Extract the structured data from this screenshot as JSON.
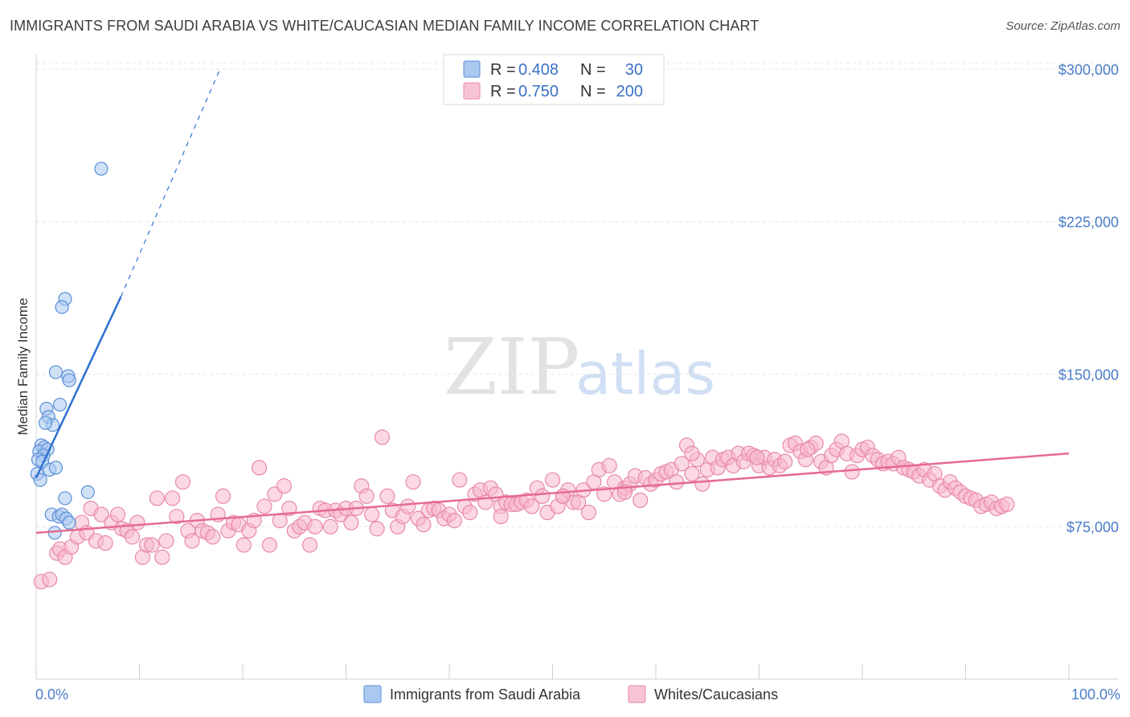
{
  "title": "IMMIGRANTS FROM SAUDI ARABIA VS WHITE/CAUCASIAN MEDIAN FAMILY INCOME CORRELATION CHART",
  "source": "Source: ZipAtlas.com",
  "watermark": {
    "zip": "ZIP",
    "atlas": "atlas"
  },
  "colors": {
    "blue_fill": "#aac8f0",
    "blue_stroke": "#5a8fd8",
    "blue_line": "#2e70d0",
    "pink_fill": "#f7b8cc",
    "pink_stroke": "#e889a8",
    "pink_line": "#e56b93",
    "tick_color": "#4a7cc9",
    "grid": "#e6e6e6"
  },
  "legend": {
    "rows": [
      {
        "r_label": "R =",
        "r_value": "0.408",
        "n_label": "N =",
        "n_value": "30"
      },
      {
        "r_label": "R =",
        "r_value": "0.750",
        "n_label": "N =",
        "n_value": "200"
      }
    ]
  },
  "bottom_legend": [
    "Immigrants from Saudi Arabia",
    "Whites/Caucasians"
  ],
  "chart_data": {
    "type": "scatter",
    "title": "IMMIGRANTS FROM SAUDI ARABIA VS WHITE/CAUCASIAN MEDIAN FAMILY INCOME CORRELATION CHART",
    "xlabel": "",
    "ylabel": "Median Family Income",
    "xlim": [
      0,
      100
    ],
    "ylim": [
      0,
      315000
    ],
    "x_tick_labels": [
      "0.0%",
      "100.0%"
    ],
    "y_ticks": [
      75000,
      150000,
      225000,
      300000
    ],
    "y_tick_labels": [
      "$75,000",
      "$150,000",
      "$225,000",
      "$300,000"
    ],
    "series": [
      {
        "name": "Immigrants from Saudi Arabia",
        "r": 0.408,
        "n": 30,
        "trend": {
          "x": [
            0,
            8.2
          ],
          "y": [
            99000,
            188000
          ],
          "dashed_to": {
            "x": 17.8,
            "y": 300000
          }
        },
        "points": [
          [
            6.3,
            251000
          ],
          [
            2.8,
            187000
          ],
          [
            2.5,
            183000
          ],
          [
            1.9,
            151000
          ],
          [
            3.1,
            149000
          ],
          [
            3.2,
            147000
          ],
          [
            1.0,
            133000
          ],
          [
            2.3,
            135000
          ],
          [
            1.2,
            129000
          ],
          [
            1.6,
            125000
          ],
          [
            0.9,
            126000
          ],
          [
            0.5,
            115000
          ],
          [
            0.8,
            114000
          ],
          [
            0.3,
            112000
          ],
          [
            1.1,
            113000
          ],
          [
            0.7,
            110000
          ],
          [
            0.2,
            108000
          ],
          [
            0.6,
            107000
          ],
          [
            0.1,
            101000
          ],
          [
            1.3,
            103000
          ],
          [
            1.9,
            104000
          ],
          [
            2.8,
            89000
          ],
          [
            5.0,
            92000
          ],
          [
            1.5,
            81000
          ],
          [
            2.2,
            80000
          ],
          [
            2.5,
            81000
          ],
          [
            2.9,
            79000
          ],
          [
            3.2,
            77000
          ],
          [
            1.8,
            72000
          ],
          [
            0.4,
            98000
          ]
        ]
      },
      {
        "name": "Whites/Caucasians",
        "r": 0.75,
        "n": 200,
        "trend": {
          "x": [
            0,
            100
          ],
          "y": [
            72000,
            111000
          ]
        },
        "points": [
          [
            0.5,
            48000
          ],
          [
            1.3,
            49000
          ],
          [
            2.0,
            62000
          ],
          [
            2.3,
            64000
          ],
          [
            2.8,
            60000
          ],
          [
            3.4,
            65000
          ],
          [
            4.0,
            70000
          ],
          [
            4.4,
            77000
          ],
          [
            4.9,
            72000
          ],
          [
            5.3,
            84000
          ],
          [
            5.8,
            68000
          ],
          [
            6.3,
            81000
          ],
          [
            6.7,
            67000
          ],
          [
            7.3,
            77000
          ],
          [
            7.9,
            81000
          ],
          [
            8.3,
            74000
          ],
          [
            8.8,
            73000
          ],
          [
            9.3,
            70000
          ],
          [
            9.8,
            77000
          ],
          [
            10.3,
            60000
          ],
          [
            10.7,
            66000
          ],
          [
            11.2,
            66000
          ],
          [
            11.7,
            89000
          ],
          [
            12.2,
            60000
          ],
          [
            12.6,
            68000
          ],
          [
            13.2,
            89000
          ],
          [
            13.6,
            80000
          ],
          [
            14.2,
            97000
          ],
          [
            14.7,
            73000
          ],
          [
            15.1,
            68000
          ],
          [
            15.6,
            78000
          ],
          [
            16.1,
            73000
          ],
          [
            16.6,
            72000
          ],
          [
            17.1,
            70000
          ],
          [
            17.6,
            81000
          ],
          [
            18.1,
            90000
          ],
          [
            18.6,
            73000
          ],
          [
            19.1,
            77000
          ],
          [
            19.6,
            76000
          ],
          [
            20.1,
            66000
          ],
          [
            20.6,
            73000
          ],
          [
            21.1,
            78000
          ],
          [
            21.6,
            104000
          ],
          [
            22.1,
            85000
          ],
          [
            22.6,
            66000
          ],
          [
            23.1,
            91000
          ],
          [
            23.6,
            78000
          ],
          [
            24.0,
            95000
          ],
          [
            24.5,
            84000
          ],
          [
            25.0,
            73000
          ],
          [
            25.5,
            75000
          ],
          [
            26.0,
            77000
          ],
          [
            26.5,
            66000
          ],
          [
            27.0,
            75000
          ],
          [
            27.5,
            84000
          ],
          [
            28.0,
            83000
          ],
          [
            28.5,
            75000
          ],
          [
            29.0,
            83000
          ],
          [
            29.5,
            81000
          ],
          [
            30.0,
            84000
          ],
          [
            30.5,
            77000
          ],
          [
            31.0,
            84000
          ],
          [
            31.5,
            95000
          ],
          [
            32.0,
            90000
          ],
          [
            32.5,
            81000
          ],
          [
            33.0,
            74000
          ],
          [
            33.5,
            119000
          ],
          [
            34.0,
            90000
          ],
          [
            34.5,
            83000
          ],
          [
            35.0,
            75000
          ],
          [
            35.5,
            80000
          ],
          [
            36.0,
            85000
          ],
          [
            36.5,
            97000
          ],
          [
            37.0,
            79000
          ],
          [
            37.5,
            76000
          ],
          [
            38.0,
            83000
          ],
          [
            38.5,
            84000
          ],
          [
            39.0,
            83000
          ],
          [
            39.5,
            79000
          ],
          [
            40.0,
            81000
          ],
          [
            40.5,
            78000
          ],
          [
            41.0,
            98000
          ],
          [
            41.5,
            85000
          ],
          [
            42.0,
            82000
          ],
          [
            42.5,
            91000
          ],
          [
            43.0,
            93000
          ],
          [
            43.5,
            87000
          ],
          [
            44.0,
            94000
          ],
          [
            44.5,
            91000
          ],
          [
            45.0,
            85000
          ],
          [
            45.5,
            87000
          ],
          [
            46.0,
            86000
          ],
          [
            46.5,
            86000
          ],
          [
            47.0,
            87000
          ],
          [
            47.5,
            88000
          ],
          [
            48.0,
            85000
          ],
          [
            48.5,
            94000
          ],
          [
            49.0,
            90000
          ],
          [
            49.5,
            82000
          ],
          [
            50.0,
            98000
          ],
          [
            50.5,
            85000
          ],
          [
            51.0,
            90000
          ],
          [
            51.5,
            93000
          ],
          [
            52.0,
            87000
          ],
          [
            52.5,
            87000
          ],
          [
            53.0,
            93000
          ],
          [
            53.5,
            82000
          ],
          [
            54.0,
            97000
          ],
          [
            54.5,
            103000
          ],
          [
            55.0,
            91000
          ],
          [
            55.5,
            105000
          ],
          [
            56.0,
            97000
          ],
          [
            56.5,
            91000
          ],
          [
            57.0,
            94000
          ],
          [
            57.5,
            96000
          ],
          [
            58.0,
            100000
          ],
          [
            58.5,
            88000
          ],
          [
            59.0,
            99000
          ],
          [
            59.5,
            96000
          ],
          [
            60.0,
            98000
          ],
          [
            60.5,
            101000
          ],
          [
            61.0,
            102000
          ],
          [
            61.5,
            103000
          ],
          [
            62.0,
            97000
          ],
          [
            62.5,
            106000
          ],
          [
            63.0,
            115000
          ],
          [
            63.5,
            101000
          ],
          [
            64.0,
            108000
          ],
          [
            64.5,
            96000
          ],
          [
            65.0,
            103000
          ],
          [
            65.5,
            109000
          ],
          [
            66.0,
            104000
          ],
          [
            66.5,
            108000
          ],
          [
            67.0,
            109000
          ],
          [
            67.5,
            105000
          ],
          [
            68.0,
            111000
          ],
          [
            68.5,
            107000
          ],
          [
            69.0,
            111000
          ],
          [
            69.5,
            110000
          ],
          [
            70.0,
            105000
          ],
          [
            70.5,
            109000
          ],
          [
            71.0,
            104000
          ],
          [
            71.5,
            108000
          ],
          [
            72.0,
            105000
          ],
          [
            72.5,
            107000
          ],
          [
            73.0,
            115000
          ],
          [
            73.5,
            116000
          ],
          [
            74.0,
            112000
          ],
          [
            74.5,
            108000
          ],
          [
            75.0,
            114000
          ],
          [
            75.5,
            116000
          ],
          [
            76.0,
            107000
          ],
          [
            76.5,
            104000
          ],
          [
            77.0,
            110000
          ],
          [
            77.5,
            113000
          ],
          [
            78.0,
            117000
          ],
          [
            78.5,
            111000
          ],
          [
            79.0,
            102000
          ],
          [
            79.5,
            110000
          ],
          [
            80.0,
            113000
          ],
          [
            80.5,
            114000
          ],
          [
            81.0,
            110000
          ],
          [
            81.5,
            108000
          ],
          [
            82.0,
            106000
          ],
          [
            82.5,
            107000
          ],
          [
            83.0,
            106000
          ],
          [
            83.5,
            109000
          ],
          [
            84.0,
            104000
          ],
          [
            84.5,
            103000
          ],
          [
            85.0,
            102000
          ],
          [
            85.5,
            100000
          ],
          [
            86.0,
            103000
          ],
          [
            86.5,
            98000
          ],
          [
            87.0,
            101000
          ],
          [
            87.5,
            95000
          ],
          [
            88.0,
            93000
          ],
          [
            88.5,
            97000
          ],
          [
            89.0,
            94000
          ],
          [
            89.5,
            92000
          ],
          [
            90.0,
            90000
          ],
          [
            90.5,
            89000
          ],
          [
            91.0,
            88000
          ],
          [
            91.5,
            85000
          ],
          [
            92.0,
            86000
          ],
          [
            92.5,
            87000
          ],
          [
            93.0,
            84000
          ],
          [
            93.5,
            85000
          ],
          [
            94.0,
            86000
          ],
          [
            45.0,
            80000
          ],
          [
            51.0,
            90000
          ],
          [
            57.0,
            92000
          ],
          [
            63.5,
            111000
          ],
          [
            69.8,
            109000
          ],
          [
            74.7,
            113000
          ]
        ]
      }
    ]
  }
}
